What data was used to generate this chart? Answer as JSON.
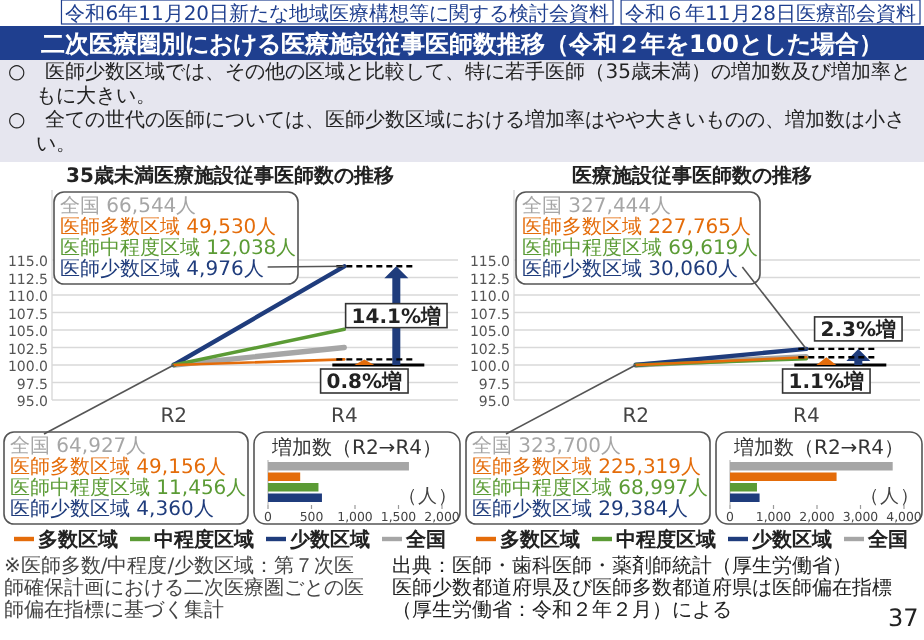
{
  "chart_data": [
    {
      "type": "line",
      "title": "35歳未満医療施設従事医師数の推移",
      "categories": [
        "R2",
        "R4"
      ],
      "series": [
        {
          "name": "多数区域",
          "color": "#e46c0a",
          "values": [
            100,
            100.8
          ]
        },
        {
          "name": "中程度区域",
          "color": "#5b9b35",
          "values": [
            100,
            105.1
          ]
        },
        {
          "name": "少数区域",
          "color": "#1f3c7c",
          "values": [
            100,
            114.1
          ]
        },
        {
          "name": "全国",
          "color": "#a6a6a6",
          "values": [
            100,
            102.5
          ]
        }
      ],
      "ylim": [
        95,
        125
      ],
      "yticks": [
        {
          "value": 95,
          "label": "95.0"
        },
        {
          "value": 97.5,
          "label": "97.5"
        },
        {
          "value": 100,
          "label": "100.0"
        },
        {
          "value": 102.5,
          "label": "102.5"
        },
        {
          "value": 105,
          "label": "105.0"
        },
        {
          "value": 107.5,
          "label": "107.5"
        },
        {
          "value": 110,
          "label": "110.0"
        },
        {
          "value": 112.5,
          "label": "112.5"
        },
        {
          "value": 115,
          "label": "115.0"
        }
      ],
      "grid": "y",
      "legend": "bottom",
      "ref_lines": [
        {
          "axis": "y",
          "value": 114.1,
          "label": "14.1%増",
          "color": "#000000",
          "line_style": "dashed"
        },
        {
          "axis": "y",
          "value": 100.8,
          "label": "0.8%増",
          "color": "#000000",
          "line_style": "dashed"
        }
      ],
      "annotations": [
        "令和6年11月20日新たな地域医療構想等に関する検討会資料",
        "令和６年11月28日医療部会資料",
        "二次医療圏別における医療施設従事医師数推移（令和２年を100とした場合）",
        "○　医師少数区域では、その他の区域と比較して、特に若手医師（35歳未満）の増加数及び増加率ともに大きい。",
        "○　全ての世代の医師については、医師少数区域における増加率はやや大きいものの、増加数は小さい。",
        "※医師多数/中程度/少数区域：第７次医師確保計画における二次医療圏ごとの医師偏在指標に基づく集計",
        {
          "text": "全国 64,927人",
          "x": "R2",
          "y": 100
        },
        "医師多数区域 49,156人",
        "医師中程度区域 11,456人",
        "医師少数区域 4,360人",
        "全国 66,544人",
        "医師多数区域 49,530人",
        "医師中程度区域 12,038人",
        {
          "text": "医師少数区域 4,976人",
          "x": "R4",
          "y": 114.1
        }
      ]
    },
    {
      "type": "bar",
      "orientation": "horizontal",
      "title": "増加数（R2→R4）",
      "xlabel": "（人）",
      "categories": [
        null,
        null,
        null,
        null
      ],
      "values": [
        1620,
        370,
        580,
        620
      ],
      "colors": [
        "#a6a6a6",
        "#e46c0a",
        "#5b9b35",
        "#1f3c7c"
      ],
      "xlim": [
        0,
        2000
      ],
      "xticks": [
        {
          "value": 0,
          "label": "0"
        },
        {
          "value": 500,
          "label": "500"
        },
        {
          "value": 1000,
          "label": "1,000"
        },
        {
          "value": 1500,
          "label": "1,500"
        },
        {
          "value": 2000,
          "label": "2,000"
        }
      ]
    },
    {
      "type": "line",
      "title": "医療施設従事医師数の推移",
      "categories": [
        "R2",
        "R4"
      ],
      "series": [
        {
          "name": "多数区域",
          "color": "#e46c0a",
          "values": [
            100,
            101.1
          ]
        },
        {
          "name": "中程度区域",
          "color": "#5b9b35",
          "values": [
            100,
            100.9
          ]
        },
        {
          "name": "少数区域",
          "color": "#1f3c7c",
          "values": [
            100,
            102.3
          ]
        },
        {
          "name": "全国",
          "color": "#a6a6a6",
          "values": [
            100,
            101.2
          ]
        }
      ],
      "ylim": [
        95,
        125
      ],
      "yticks": [
        {
          "value": 95,
          "label": "95.0"
        },
        {
          "value": 97.5,
          "label": "97.5"
        },
        {
          "value": 100,
          "label": "100.0"
        },
        {
          "value": 102.5,
          "label": "102.5"
        },
        {
          "value": 105,
          "label": "105.0"
        },
        {
          "value": 107.5,
          "label": "107.5"
        },
        {
          "value": 110,
          "label": "110.0"
        },
        {
          "value": 112.5,
          "label": "112.5"
        },
        {
          "value": 115,
          "label": "115.0"
        }
      ],
      "grid": "y",
      "legend": "bottom",
      "ref_lines": [
        {
          "axis": "y",
          "value": 102.3,
          "label": "2.3%増",
          "color": "#000000",
          "line_style": "dashed"
        },
        {
          "axis": "y",
          "value": 101.1,
          "label": "1.1%増",
          "color": "#000000",
          "line_style": "dashed"
        }
      ],
      "annotations": [
        "出典：医師・歯科医師・薬剤師統計（厚生労働省）",
        "医師少数都道府県及び医師多数都道府県は医師偏在指標",
        "（厚生労働省：令和２年２月）による",
        "37",
        {
          "text": "全国 323,700人",
          "x": "R2",
          "y": 100
        },
        "医師多数区域 225,319人",
        "医師中程度区域 68,997人",
        "医師少数区域 29,384人",
        "全国 327,444人",
        "医師多数区域 227,765人",
        "医師中程度区域 69,619人",
        {
          "text": "医師少数区域 30,060人",
          "x": "R4",
          "y": 102.3
        }
      ]
    },
    {
      "type": "bar",
      "orientation": "horizontal",
      "title": "増加数（R2→R4）",
      "xlabel": "（人）",
      "categories": [
        null,
        null,
        null,
        null
      ],
      "values": [
        3740,
        2450,
        620,
        680
      ],
      "colors": [
        "#a6a6a6",
        "#e46c0a",
        "#5b9b35",
        "#1f3c7c"
      ],
      "xlim": [
        0,
        4000
      ],
      "xticks": [
        0,
        {
          "value": 1000,
          "label": "1,000"
        },
        {
          "value": 2000,
          "label": "2,000"
        },
        {
          "value": 3000,
          "label": "3,000"
        },
        {
          "value": 4000,
          "label": "4,000"
        }
      ]
    }
  ]
}
